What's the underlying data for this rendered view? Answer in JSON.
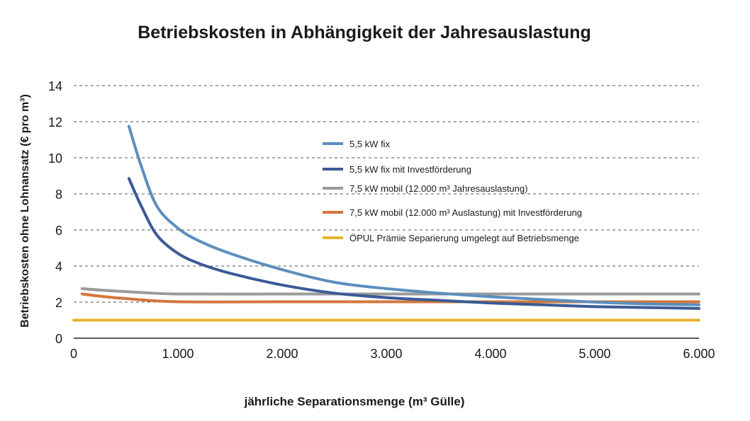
{
  "chart_data": {
    "type": "line",
    "title": "Betriebskosten in Abhängigkeit der Jahresauslastung",
    "xlabel": "jährliche Separationsmenge (m³ Gülle)",
    "ylabel": "Betriebskosten ohne Lohnansatz (€ pro m³)",
    "xlim": [
      0,
      6000
    ],
    "ylim": [
      0,
      14
    ],
    "x_ticks": [
      0,
      1000,
      2000,
      3000,
      4000,
      5000,
      6000
    ],
    "x_tick_labels": [
      "0",
      "1.000",
      "2.000",
      "3.000",
      "4.000",
      "5.000",
      "6.000"
    ],
    "y_ticks": [
      0,
      2,
      4,
      6,
      8,
      10,
      12,
      14
    ],
    "y_tick_labels": [
      "0",
      "2",
      "4",
      "6",
      "8",
      "10",
      "12",
      "14"
    ],
    "grid": "horizontal dashed",
    "legend_position": "center-right",
    "series": [
      {
        "name": "5,5 kW fix",
        "color": "#5b8fbe",
        "points": [
          [
            530,
            11.75
          ],
          [
            650,
            9.5
          ],
          [
            800,
            7.3
          ],
          [
            1000,
            6.1
          ],
          [
            1200,
            5.4
          ],
          [
            1500,
            4.7
          ],
          [
            2000,
            3.8
          ],
          [
            2500,
            3.1
          ],
          [
            3000,
            2.75
          ],
          [
            3500,
            2.5
          ],
          [
            4000,
            2.3
          ],
          [
            4500,
            2.15
          ],
          [
            5000,
            2.0
          ],
          [
            5500,
            1.9
          ],
          [
            6000,
            1.85
          ]
        ]
      },
      {
        "name": "5,5 kW fix mit Investförderung",
        "color": "#3b5a96",
        "points": [
          [
            530,
            8.85
          ],
          [
            650,
            7.3
          ],
          [
            800,
            5.7
          ],
          [
            1000,
            4.7
          ],
          [
            1200,
            4.15
          ],
          [
            1500,
            3.6
          ],
          [
            2000,
            2.95
          ],
          [
            2500,
            2.5
          ],
          [
            3000,
            2.25
          ],
          [
            3500,
            2.1
          ],
          [
            4000,
            1.95
          ],
          [
            4500,
            1.85
          ],
          [
            5000,
            1.75
          ],
          [
            5500,
            1.7
          ],
          [
            6000,
            1.65
          ]
        ]
      },
      {
        "name": "7,5 kW mobil (12.000 m³ Jahresauslastung)",
        "color": "#9a9a9a",
        "points": [
          [
            80,
            2.75
          ],
          [
            300,
            2.65
          ],
          [
            600,
            2.55
          ],
          [
            1000,
            2.45
          ],
          [
            2000,
            2.45
          ],
          [
            3000,
            2.45
          ],
          [
            4000,
            2.45
          ],
          [
            5000,
            2.45
          ],
          [
            6000,
            2.45
          ]
        ]
      },
      {
        "name": "7,5 kW mobil (12.000 m³ Auslastung) mit Investförderung",
        "color": "#d2773a",
        "points": [
          [
            80,
            2.45
          ],
          [
            300,
            2.3
          ],
          [
            600,
            2.15
          ],
          [
            1000,
            2.02
          ],
          [
            2000,
            2.02
          ],
          [
            3000,
            2.02
          ],
          [
            4000,
            2.02
          ],
          [
            5000,
            2.02
          ],
          [
            6000,
            2.02
          ]
        ]
      },
      {
        "name": "ÖPUL Prämie Separierung umgelegt auf Betriebsmenge",
        "color": "#e5b42b",
        "points": [
          [
            0,
            1.0
          ],
          [
            6000,
            1.0
          ]
        ]
      }
    ]
  }
}
